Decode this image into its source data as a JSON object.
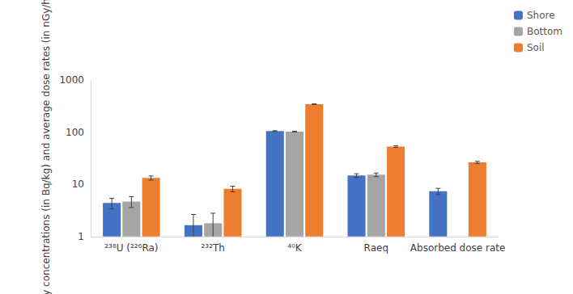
{
  "chart_data": {
    "type": "bar",
    "y_label": "Activity concentrations (in Bq/kg) and average dose rates (in nGy/hr)",
    "categories": [
      "²³⁸U (²²⁶Ra)",
      "²³²Th",
      "⁴⁰K",
      "Raeq",
      "Absorbed dose rate"
    ],
    "series": [
      {
        "name": "Shore",
        "color": "#4472c4",
        "values": [
          4.4,
          1.65,
          105,
          14.8,
          7.4
        ],
        "errors": [
          1.0,
          1.0,
          2,
          1.2,
          1.0
        ]
      },
      {
        "name": "Bottom",
        "color": "#a5a5a5",
        "values": [
          4.7,
          1.8,
          103,
          15.3,
          null
        ],
        "errors": [
          1.1,
          1.0,
          2,
          1.2,
          null
        ]
      },
      {
        "name": "Soil",
        "color": "#ed7d31",
        "values": [
          13.3,
          8.2,
          345,
          53,
          26.5
        ],
        "errors": [
          1.2,
          1.0,
          5,
          2,
          1.2
        ]
      }
    ],
    "log": "y",
    "ylim": [
      1,
      1000
    ],
    "yticks": [
      1,
      10,
      100,
      1000
    ],
    "grid": false,
    "legend": "upper right"
  }
}
